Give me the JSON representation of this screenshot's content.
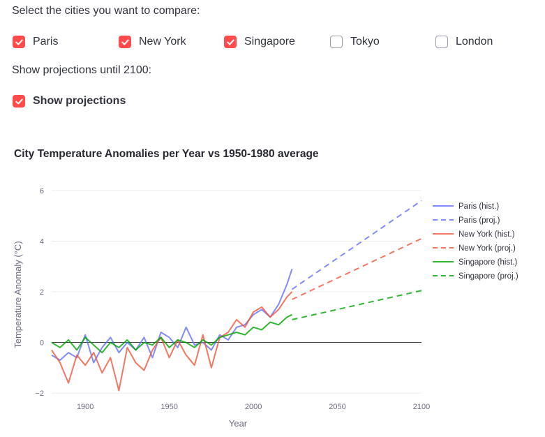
{
  "cities_prompt": "Select the cities you want to compare:",
  "cities": [
    {
      "label": "Paris",
      "checked": true
    },
    {
      "label": "New York",
      "checked": true
    },
    {
      "label": "Singapore",
      "checked": true
    },
    {
      "label": "Tokyo",
      "checked": false
    },
    {
      "label": "London",
      "checked": false
    }
  ],
  "projections_prompt": "Show projections until 2100:",
  "projections": {
    "label": "Show projections",
    "checked": true
  },
  "accent_color": "#ff4b4b",
  "chart_data": {
    "type": "line",
    "title": "City Temperature Anomalies per Year vs 1950-1980 average",
    "xlabel": "Year",
    "ylabel": "Temperature Anomaly (°C)",
    "xlim": [
      1880,
      2100
    ],
    "ylim": [
      -2.3,
      6.3
    ],
    "xticks": [
      1900,
      1950,
      2000,
      2050,
      2100
    ],
    "yticks": [
      -2,
      0,
      2,
      4,
      6
    ],
    "ytick_labels": [
      "−2",
      "0",
      "2",
      "4",
      "6"
    ],
    "grid": true,
    "zero_line": true,
    "legend_position": "top-right",
    "series": [
      {
        "name": "Paris (hist.)",
        "color": "#636efa",
        "dash": "solid",
        "x": [
          1880,
          1885,
          1890,
          1895,
          1900,
          1905,
          1910,
          1915,
          1920,
          1925,
          1930,
          1935,
          1940,
          1945,
          1950,
          1955,
          1960,
          1965,
          1970,
          1975,
          1980,
          1985,
          1990,
          1995,
          2000,
          2005,
          2010,
          2015,
          2020,
          2023
        ],
        "y": [
          -0.5,
          -0.7,
          -0.4,
          -0.6,
          0.3,
          -0.8,
          -0.2,
          0.2,
          -0.4,
          0.0,
          -0.3,
          0.2,
          -0.6,
          0.4,
          0.2,
          -0.2,
          0.6,
          -0.1,
          0.0,
          -0.3,
          0.3,
          0.1,
          0.6,
          0.7,
          1.1,
          1.3,
          1.0,
          1.5,
          2.3,
          2.9
        ]
      },
      {
        "name": "Paris (proj.)",
        "color": "#636efa",
        "dash": "dashed",
        "x": [
          2023,
          2100
        ],
        "y": [
          2.1,
          5.6
        ]
      },
      {
        "name": "New York (hist.)",
        "color": "#ef553b",
        "dash": "solid",
        "x": [
          1880,
          1885,
          1890,
          1895,
          1900,
          1905,
          1910,
          1915,
          1920,
          1925,
          1930,
          1935,
          1940,
          1945,
          1950,
          1955,
          1960,
          1965,
          1970,
          1975,
          1980,
          1985,
          1990,
          1995,
          2000,
          2005,
          2010,
          2015,
          2020,
          2023
        ],
        "y": [
          -0.3,
          -0.8,
          -1.6,
          -0.5,
          -0.9,
          -0.4,
          -1.2,
          -0.6,
          -1.9,
          -0.2,
          -0.8,
          -1.1,
          -0.3,
          0.2,
          -0.6,
          0.1,
          -0.5,
          -0.9,
          0.3,
          -1.0,
          0.2,
          0.4,
          0.9,
          0.6,
          1.2,
          1.4,
          1.0,
          1.3,
          1.8,
          2.0
        ]
      },
      {
        "name": "New York (proj.)",
        "color": "#ef553b",
        "dash": "dashed",
        "x": [
          2023,
          2100
        ],
        "y": [
          1.7,
          4.1
        ]
      },
      {
        "name": "Singapore (hist.)",
        "color": "#00a300",
        "dash": "solid",
        "x": [
          1880,
          1885,
          1890,
          1895,
          1900,
          1905,
          1910,
          1915,
          1920,
          1925,
          1930,
          1935,
          1940,
          1945,
          1950,
          1955,
          1960,
          1965,
          1970,
          1975,
          1980,
          1985,
          1990,
          1995,
          2000,
          2005,
          2010,
          2015,
          2020,
          2023
        ],
        "y": [
          0.0,
          -0.2,
          0.1,
          -0.3,
          0.2,
          -0.1,
          -0.4,
          0.0,
          -0.2,
          0.1,
          -0.3,
          0.0,
          -0.1,
          0.2,
          -0.2,
          0.1,
          0.0,
          -0.2,
          0.1,
          -0.1,
          0.2,
          0.3,
          0.4,
          0.3,
          0.6,
          0.5,
          0.8,
          0.7,
          1.0,
          1.1
        ]
      },
      {
        "name": "Singapore (proj.)",
        "color": "#00a300",
        "dash": "dashed",
        "x": [
          2023,
          2100
        ],
        "y": [
          0.9,
          2.05
        ]
      }
    ]
  }
}
